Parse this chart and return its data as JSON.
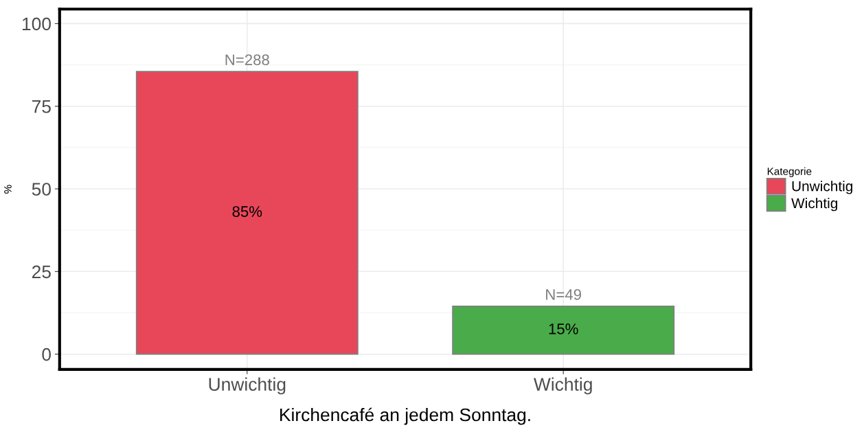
{
  "chart_data": {
    "type": "bar",
    "xlabel": "Kirchencafé an jedem Sonntag.",
    "ylabel": "%",
    "legend_title": "Kategorie",
    "categories": [
      "Unwichtig",
      "Wichtig"
    ],
    "series": [
      {
        "name": "Unwichtig",
        "color": "#e8475a",
        "values": [
          85.5,
          null
        ],
        "value_labels": [
          "85%",
          null
        ]
      },
      {
        "name": "Wichtig",
        "color": "#4aab4a",
        "values": [
          null,
          14.5
        ],
        "value_labels": [
          null,
          "15%"
        ]
      }
    ],
    "annotations": [
      {
        "text": "N=288",
        "x": "Unwichtig",
        "y": 85.5
      },
      {
        "text": "N=49",
        "x": "Wichtig",
        "y": 14.5
      }
    ],
    "ylim": [
      -4.6,
      104.4
    ],
    "yticks": [
      0,
      25,
      50,
      75,
      100
    ],
    "grid": true,
    "legend": "right"
  }
}
